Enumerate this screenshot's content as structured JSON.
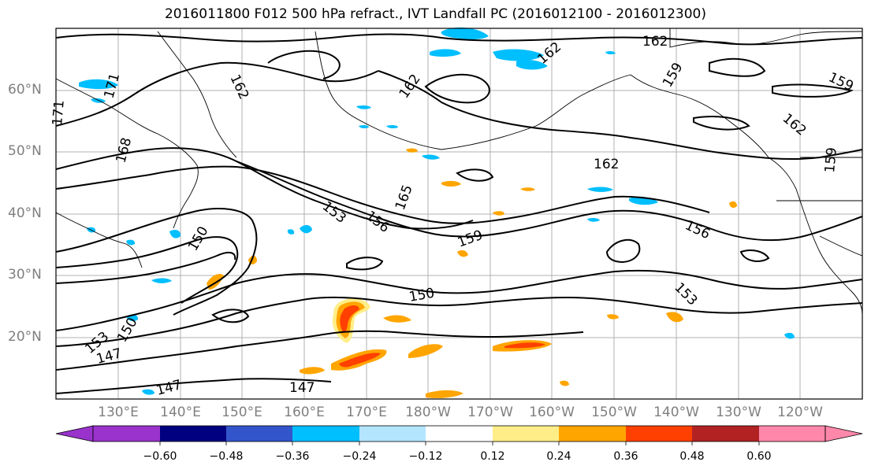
{
  "title": "2016011800 F012 500 hPa refract., IVT Landfall PC (2016012100 - 2016012300)",
  "lat_labels": [
    "60°N",
    "50°N",
    "40°N",
    "30°N",
    "20°N"
  ],
  "lon_labels": [
    "130°E",
    "140°E",
    "150°E",
    "160°E",
    "170°E",
    "180°W",
    "170°W",
    "160°W",
    "150°W",
    "140°W",
    "130°W",
    "120°W"
  ],
  "contour_labels": [
    "162",
    "162",
    "162",
    "162",
    "162",
    "162",
    "159",
    "159",
    "159",
    "159",
    "171",
    "171",
    "168",
    "165",
    "156",
    "156",
    "153",
    "153",
    "153",
    "150",
    "150",
    "150",
    "147",
    "147",
    "147"
  ],
  "colorbar": {
    "ticks": [
      "−0.60",
      "−0.48",
      "−0.36",
      "−0.24",
      "−0.12",
      "0.12",
      "0.24",
      "0.36",
      "0.48",
      "0.60"
    ],
    "colors": [
      "#9933cc",
      "#000080",
      "#3355cc",
      "#00bfff",
      "#b3e5ff",
      "#ffffff",
      "#ffee88",
      "#ffa500",
      "#ff4000",
      "#b22222",
      "#ff88aa"
    ]
  }
}
